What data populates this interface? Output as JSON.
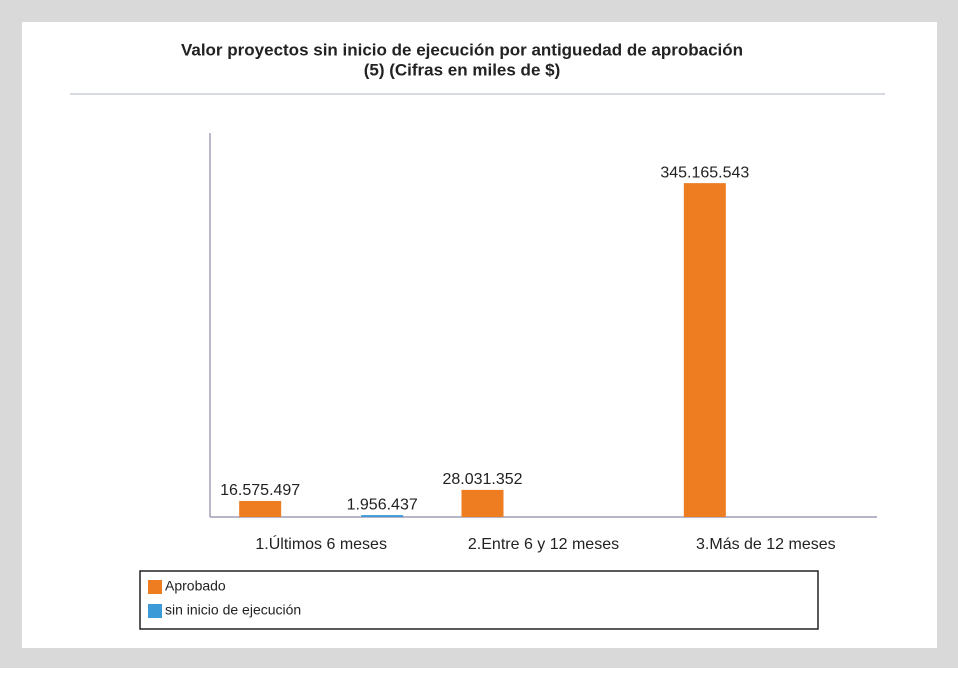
{
  "chart_data": {
    "type": "bar",
    "title": "Valor proyectos sin inicio de ejecución por antiguedad de aprobación",
    "subtitle": "(5) (Cifras en miles de $)",
    "categories": [
      "1.Últimos 6 meses",
      "2.Entre 6 y 12 meses",
      "3.Más de 12 meses"
    ],
    "series": [
      {
        "name": "Aprobado",
        "color": "#ee7d22",
        "values": [
          16575497,
          28031352,
          345165543
        ],
        "value_labels": [
          "16.575.497",
          "28.031.352",
          "345.165.543"
        ]
      },
      {
        "name": "sin inicio de ejecución",
        "color": "#3c9ad6",
        "values": [
          1956437,
          null,
          null
        ],
        "value_labels": [
          "1.956.437",
          null,
          null
        ]
      }
    ],
    "ylim": [
      0,
      397000000
    ]
  }
}
